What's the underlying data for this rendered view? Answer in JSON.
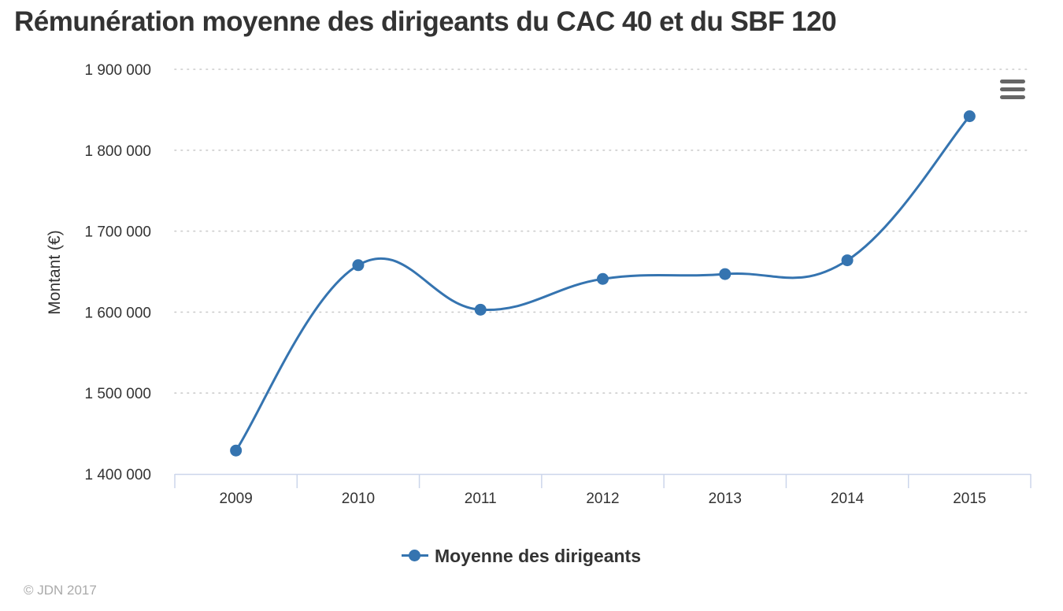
{
  "chart_data": {
    "type": "line",
    "title": "Rémunération moyenne des dirigeants du CAC 40 et du SBF 120",
    "xlabel": "",
    "ylabel": "Montant (€)",
    "categories": [
      "2009",
      "2010",
      "2011",
      "2012",
      "2013",
      "2014",
      "2015"
    ],
    "series": [
      {
        "name": "Moyenne des dirigeants",
        "values": [
          1429000,
          1658000,
          1603000,
          1641000,
          1647000,
          1664000,
          1842000
        ]
      }
    ],
    "ylim": [
      1400000,
      1900000
    ],
    "yticks": [
      1400000,
      1500000,
      1600000,
      1700000,
      1800000,
      1900000
    ],
    "ytick_labels": [
      "1 400 000",
      "1 500 000",
      "1 600 000",
      "1 700 000",
      "1 800 000",
      "1 900 000"
    ],
    "grid": true,
    "grid_style": "dotted",
    "legend_position": "bottom-center",
    "line_style": "smooth",
    "series_color": "#3574b0",
    "credits": "© JDN 2017"
  },
  "toolbar": {
    "menu_icon": "hamburger-menu-icon"
  }
}
